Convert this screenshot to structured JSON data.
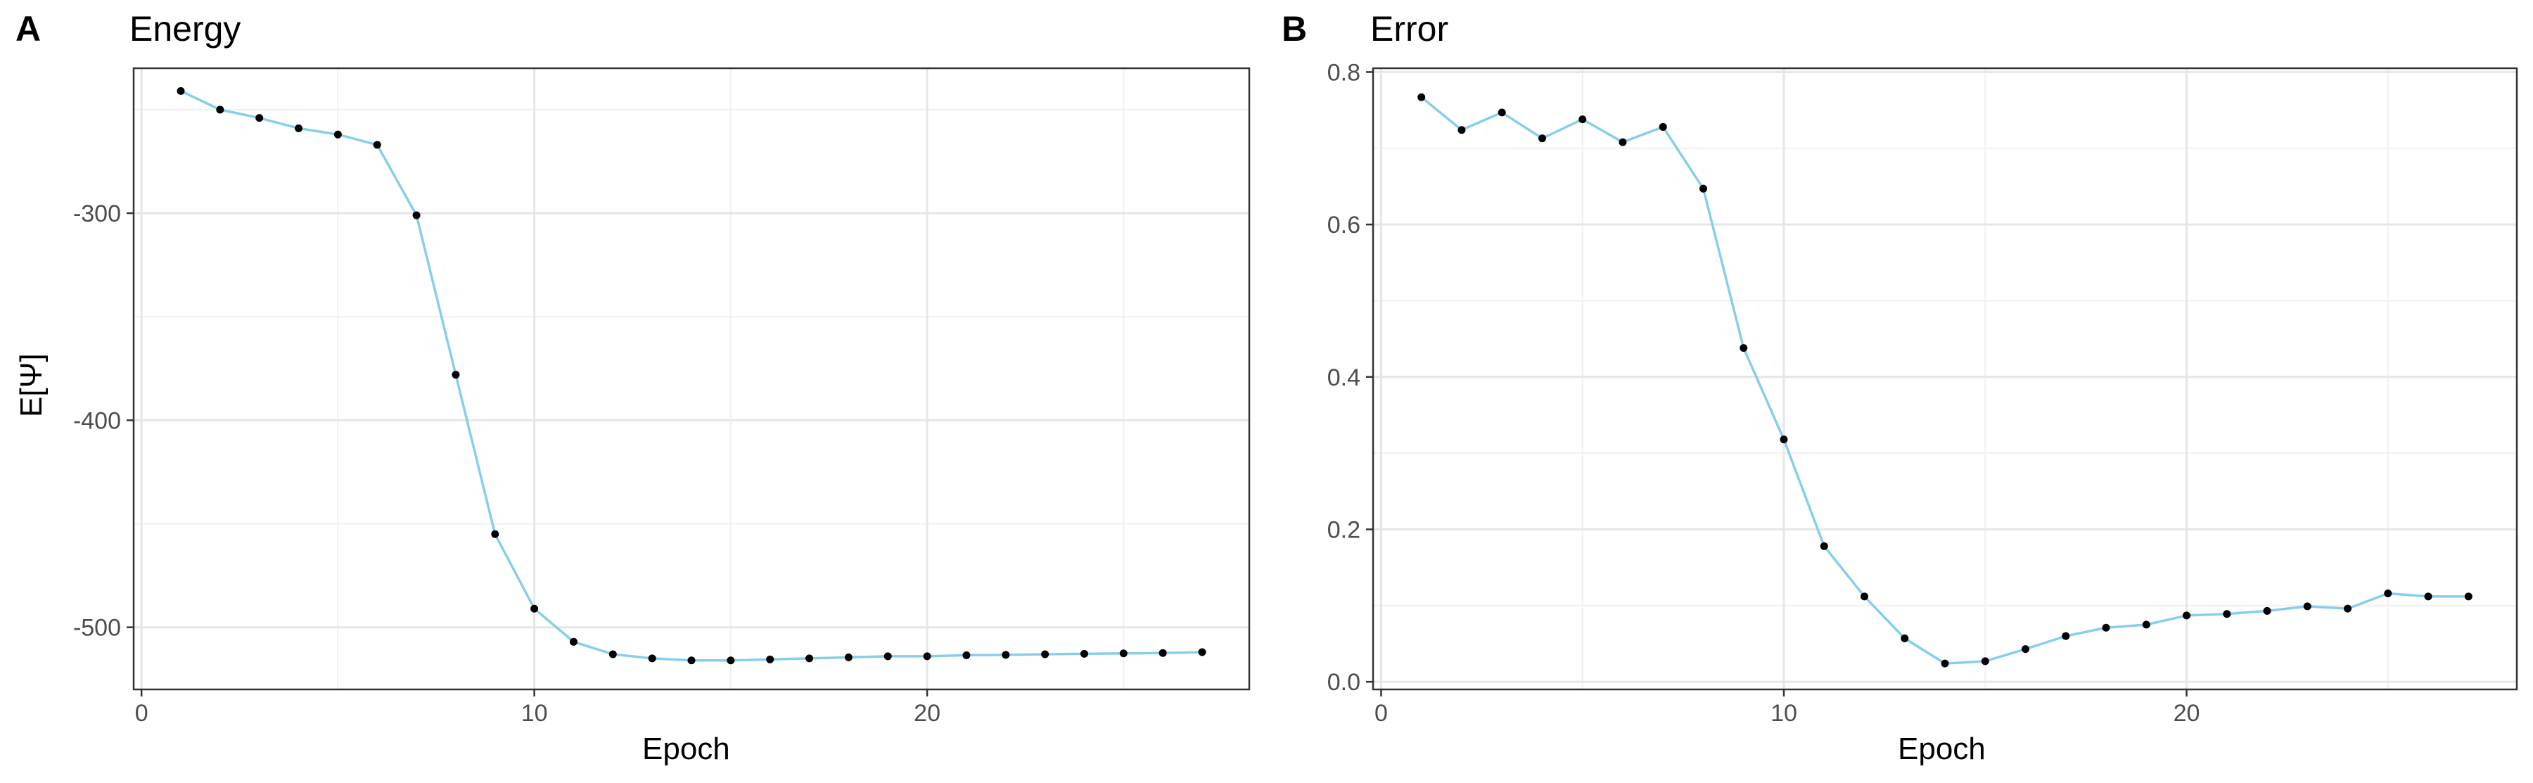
{
  "chart_data": [
    {
      "panel": "A",
      "type": "line",
      "title": "Energy",
      "xlabel": "Epoch",
      "ylabel": "E[Ψ]",
      "xlim": [
        -0.2,
        28.2
      ],
      "ylim": [
        -530,
        -230
      ],
      "xticks": [
        0,
        10,
        20
      ],
      "yticks": [
        -300,
        -400,
        -500
      ],
      "grid": true,
      "line_color": "#87CEEB",
      "point_color": "#000000",
      "series": [
        {
          "x": [
            1,
            2,
            3,
            4,
            5,
            6,
            7,
            8,
            9,
            10,
            11,
            12,
            13,
            14,
            15,
            16,
            17,
            18,
            19,
            20,
            21,
            22,
            23,
            24,
            25,
            26,
            27
          ],
          "values": [
            -241,
            -250,
            -254,
            -259,
            -262,
            -267,
            -301,
            -378,
            -455,
            -491,
            -507,
            -513,
            -515,
            -516,
            -516,
            -515.5,
            -515,
            -514.5,
            -514,
            -514,
            -513.5,
            -513.3,
            -513,
            -512.8,
            -512.6,
            -512.4,
            -512
          ]
        }
      ]
    },
    {
      "panel": "B",
      "type": "line",
      "title": "Error",
      "xlabel": "Epoch",
      "ylabel": "",
      "xlim": [
        -0.2,
        28.2
      ],
      "ylim": [
        -0.01,
        0.805
      ],
      "xticks": [
        0,
        10,
        20
      ],
      "yticks": [
        0.0,
        0.2,
        0.4,
        0.6,
        0.8
      ],
      "ytick_labels": [
        "0.0",
        "0.2",
        "0.4",
        "0.6",
        "0.8"
      ],
      "grid": true,
      "line_color": "#87CEEB",
      "point_color": "#000000",
      "series": [
        {
          "x": [
            1,
            2,
            3,
            4,
            5,
            6,
            7,
            8,
            9,
            10,
            11,
            12,
            13,
            14,
            15,
            16,
            17,
            18,
            19,
            20,
            21,
            22,
            23,
            24,
            25,
            26,
            27
          ],
          "values": [
            0.767,
            0.724,
            0.747,
            0.713,
            0.738,
            0.708,
            0.728,
            0.647,
            0.438,
            0.318,
            0.178,
            0.112,
            0.057,
            0.024,
            0.027,
            0.043,
            0.06,
            0.071,
            0.075,
            0.087,
            0.089,
            0.093,
            0.099,
            0.096,
            0.116,
            0.112,
            0.112
          ]
        }
      ]
    }
  ]
}
